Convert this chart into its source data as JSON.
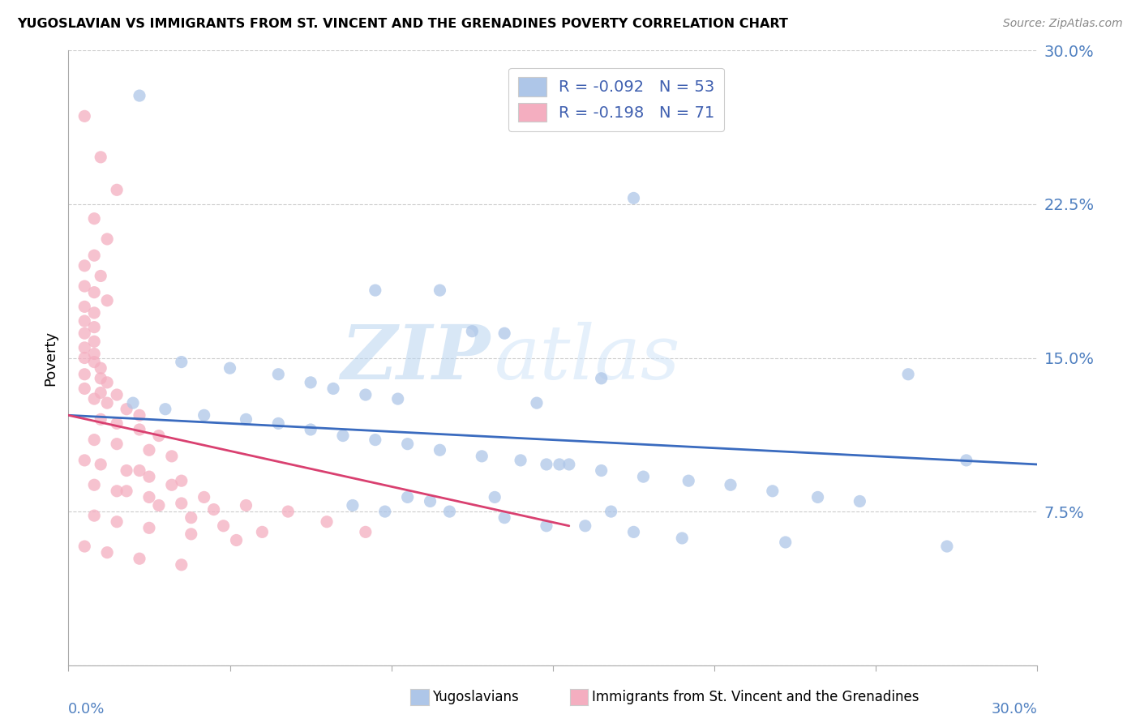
{
  "title": "YUGOSLAVIAN VS IMMIGRANTS FROM ST. VINCENT AND THE GRENADINES POVERTY CORRELATION CHART",
  "source": "Source: ZipAtlas.com",
  "ylabel": "Poverty",
  "ytick_labels": [
    "",
    "7.5%",
    "15.0%",
    "22.5%",
    "30.0%"
  ],
  "ytick_values": [
    0.0,
    0.075,
    0.15,
    0.225,
    0.3
  ],
  "xlim": [
    0.0,
    0.3
  ],
  "ylim": [
    0.0,
    0.3
  ],
  "legend_r1": "R = -0.092",
  "legend_n1": "N = 53",
  "legend_r2": "R = -0.198",
  "legend_n2": "N = 71",
  "watermark_zip": "ZIP",
  "watermark_atlas": "atlas",
  "blue_color": "#aec6e8",
  "pink_color": "#f4aec0",
  "blue_line_color": "#3a6bbf",
  "pink_line_color": "#d94070",
  "blue_scatter": [
    [
      0.022,
      0.278
    ],
    [
      0.175,
      0.228
    ],
    [
      0.095,
      0.183
    ],
    [
      0.115,
      0.183
    ],
    [
      0.125,
      0.163
    ],
    [
      0.135,
      0.162
    ],
    [
      0.035,
      0.148
    ],
    [
      0.05,
      0.145
    ],
    [
      0.065,
      0.142
    ],
    [
      0.075,
      0.138
    ],
    [
      0.082,
      0.135
    ],
    [
      0.092,
      0.132
    ],
    [
      0.102,
      0.13
    ],
    [
      0.02,
      0.128
    ],
    [
      0.03,
      0.125
    ],
    [
      0.042,
      0.122
    ],
    [
      0.055,
      0.12
    ],
    [
      0.065,
      0.118
    ],
    [
      0.075,
      0.115
    ],
    [
      0.085,
      0.112
    ],
    [
      0.095,
      0.11
    ],
    [
      0.105,
      0.108
    ],
    [
      0.115,
      0.105
    ],
    [
      0.128,
      0.102
    ],
    [
      0.14,
      0.1
    ],
    [
      0.152,
      0.098
    ],
    [
      0.165,
      0.095
    ],
    [
      0.178,
      0.092
    ],
    [
      0.192,
      0.09
    ],
    [
      0.205,
      0.088
    ],
    [
      0.218,
      0.085
    ],
    [
      0.232,
      0.082
    ],
    [
      0.245,
      0.08
    ],
    [
      0.26,
      0.142
    ],
    [
      0.278,
      0.1
    ],
    [
      0.168,
      0.075
    ],
    [
      0.148,
      0.098
    ],
    [
      0.132,
      0.082
    ],
    [
      0.112,
      0.08
    ],
    [
      0.098,
      0.075
    ],
    [
      0.222,
      0.06
    ],
    [
      0.272,
      0.058
    ],
    [
      0.145,
      0.128
    ],
    [
      0.165,
      0.14
    ],
    [
      0.155,
      0.098
    ],
    [
      0.088,
      0.078
    ],
    [
      0.105,
      0.082
    ],
    [
      0.118,
      0.075
    ],
    [
      0.135,
      0.072
    ],
    [
      0.148,
      0.068
    ],
    [
      0.16,
      0.068
    ],
    [
      0.175,
      0.065
    ],
    [
      0.19,
      0.062
    ]
  ],
  "pink_scatter": [
    [
      0.005,
      0.268
    ],
    [
      0.01,
      0.248
    ],
    [
      0.015,
      0.232
    ],
    [
      0.008,
      0.218
    ],
    [
      0.012,
      0.208
    ],
    [
      0.008,
      0.2
    ],
    [
      0.005,
      0.195
    ],
    [
      0.01,
      0.19
    ],
    [
      0.005,
      0.185
    ],
    [
      0.008,
      0.182
    ],
    [
      0.012,
      0.178
    ],
    [
      0.005,
      0.175
    ],
    [
      0.008,
      0.172
    ],
    [
      0.005,
      0.168
    ],
    [
      0.008,
      0.165
    ],
    [
      0.005,
      0.162
    ],
    [
      0.008,
      0.158
    ],
    [
      0.005,
      0.155
    ],
    [
      0.008,
      0.152
    ],
    [
      0.005,
      0.15
    ],
    [
      0.008,
      0.148
    ],
    [
      0.01,
      0.145
    ],
    [
      0.005,
      0.142
    ],
    [
      0.01,
      0.14
    ],
    [
      0.012,
      0.138
    ],
    [
      0.005,
      0.135
    ],
    [
      0.01,
      0.133
    ],
    [
      0.015,
      0.132
    ],
    [
      0.008,
      0.13
    ],
    [
      0.012,
      0.128
    ],
    [
      0.018,
      0.125
    ],
    [
      0.022,
      0.122
    ],
    [
      0.01,
      0.12
    ],
    [
      0.015,
      0.118
    ],
    [
      0.022,
      0.115
    ],
    [
      0.028,
      0.112
    ],
    [
      0.008,
      0.11
    ],
    [
      0.015,
      0.108
    ],
    [
      0.025,
      0.105
    ],
    [
      0.032,
      0.102
    ],
    [
      0.005,
      0.1
    ],
    [
      0.01,
      0.098
    ],
    [
      0.018,
      0.095
    ],
    [
      0.025,
      0.092
    ],
    [
      0.035,
      0.09
    ],
    [
      0.008,
      0.088
    ],
    [
      0.015,
      0.085
    ],
    [
      0.025,
      0.082
    ],
    [
      0.035,
      0.079
    ],
    [
      0.045,
      0.076
    ],
    [
      0.008,
      0.073
    ],
    [
      0.015,
      0.07
    ],
    [
      0.025,
      0.067
    ],
    [
      0.038,
      0.064
    ],
    [
      0.052,
      0.061
    ],
    [
      0.005,
      0.058
    ],
    [
      0.012,
      0.055
    ],
    [
      0.022,
      0.052
    ],
    [
      0.035,
      0.049
    ],
    [
      0.018,
      0.085
    ],
    [
      0.028,
      0.078
    ],
    [
      0.038,
      0.072
    ],
    [
      0.048,
      0.068
    ],
    [
      0.06,
      0.065
    ],
    [
      0.022,
      0.095
    ],
    [
      0.032,
      0.088
    ],
    [
      0.042,
      0.082
    ],
    [
      0.055,
      0.078
    ],
    [
      0.068,
      0.075
    ],
    [
      0.08,
      0.07
    ],
    [
      0.092,
      0.065
    ]
  ],
  "blue_trend_x": [
    0.0,
    0.3
  ],
  "blue_trend_y": [
    0.122,
    0.098
  ],
  "pink_trend_x": [
    0.0,
    0.155
  ],
  "pink_trend_y": [
    0.122,
    0.068
  ]
}
